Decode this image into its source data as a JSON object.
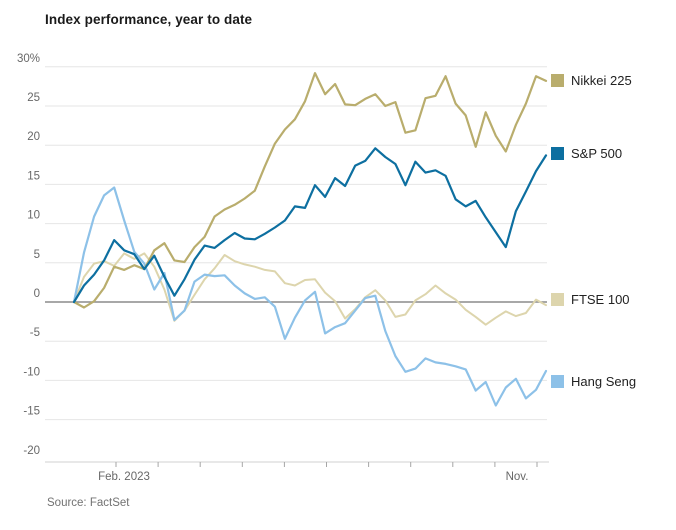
{
  "page": {
    "title": "Index performance, year to date",
    "source": "Source: FactSet"
  },
  "chart_data": {
    "type": "line",
    "title": "Index performance, year to date",
    "ylabel": "",
    "xlabel": "",
    "y_unit": "%",
    "ylim": [
      -20,
      30
    ],
    "y_ticks": [
      30,
      25,
      20,
      15,
      10,
      5,
      0,
      -5,
      -10,
      -15,
      -20
    ],
    "y_top_tick_label": "30%",
    "grid": "horizontal-light, dark zero line",
    "legend_position": "right, aligned to line ends",
    "x_axis": {
      "start_label": "Feb. 2023",
      "end_label": "Nov.",
      "tick_count": 11,
      "tick_meaning": "month starts Feb 2023 through Dec 2023",
      "labels": [
        {
          "text": "Feb. 2023"
        },
        {
          "text": "Nov."
        }
      ]
    },
    "x_note": "48 points, ~weekly from early Jan 2023 to early Dec 2023",
    "series": [
      {
        "name": "Nikkei 225",
        "color": "#b9ad6d",
        "values": [
          0,
          -0.7,
          0.1,
          1.8,
          4.5,
          4.1,
          4.7,
          4.2,
          6.6,
          7.5,
          5.3,
          5.1,
          7.0,
          8.3,
          10.9,
          11.8,
          12.4,
          13.2,
          14.2,
          17.3,
          20.2,
          22.0,
          23.3,
          25.6,
          29.2,
          26.5,
          27.8,
          25.2,
          25.1,
          25.9,
          26.5,
          25.0,
          25.5,
          21.6,
          21.9,
          26.0,
          26.3,
          28.8,
          25.3,
          23.8,
          19.8,
          24.2,
          21.2,
          19.2,
          22.6,
          25.3,
          28.8,
          28.2
        ]
      },
      {
        "name": "S&P 500",
        "color": "#0d6fa0",
        "values": [
          0,
          2.1,
          3.5,
          5.3,
          7.9,
          6.6,
          6.1,
          4.2,
          5.9,
          3.2,
          0.8,
          2.9,
          5.4,
          7.2,
          6.9,
          7.9,
          8.8,
          8.1,
          8.0,
          8.7,
          9.5,
          10.4,
          12.2,
          12.0,
          14.9,
          13.4,
          15.8,
          14.8,
          17.4,
          18.0,
          19.6,
          18.5,
          17.6,
          14.9,
          17.9,
          16.5,
          16.8,
          16.1,
          13.1,
          12.2,
          12.9,
          10.8,
          8.9,
          7.0,
          11.6,
          14.1,
          16.7,
          18.7
        ]
      },
      {
        "name": "FTSE 100",
        "color": "#ddd5ad",
        "values": [
          0,
          3.2,
          4.9,
          5.2,
          4.6,
          6.2,
          5.5,
          6.2,
          4.5,
          1.6,
          -2.4,
          -1.1,
          0.9,
          2.9,
          4.3,
          6.0,
          5.2,
          4.8,
          4.5,
          4.1,
          3.9,
          2.4,
          2.1,
          2.8,
          2.9,
          1.2,
          0.1,
          -2.1,
          -0.9,
          0.6,
          1.5,
          0.2,
          -1.9,
          -1.6,
          0.2,
          1.0,
          2.1,
          1.1,
          0.3,
          -1.0,
          -1.9,
          -2.9,
          -2.0,
          -1.2,
          -1.8,
          -1.4,
          0.3,
          -0.4
        ]
      },
      {
        "name": "Hang Seng",
        "color": "#8dc1e8",
        "values": [
          0,
          6.3,
          10.9,
          13.6,
          14.6,
          10.4,
          6.4,
          4.9,
          1.6,
          3.7,
          -2.3,
          -1.1,
          2.6,
          3.5,
          3.3,
          3.4,
          2.1,
          1.1,
          0.4,
          0.6,
          -0.6,
          -4.7,
          -2.0,
          0.2,
          1.3,
          -4.0,
          -3.2,
          -2.7,
          -1.1,
          0.5,
          0.8,
          -3.7,
          -6.9,
          -8.9,
          -8.5,
          -7.2,
          -7.7,
          -7.9,
          -8.2,
          -8.6,
          -11.3,
          -10.2,
          -13.2,
          -10.9,
          -9.8,
          -12.3,
          -11.2,
          -8.8
        ]
      }
    ],
    "source": "Source: FactSet"
  },
  "legend": {
    "items": [
      {
        "label": "Nikkei 225",
        "color": "#b9ad6d"
      },
      {
        "label": "S&P 500",
        "color": "#0d6fa0"
      },
      {
        "label": "FTSE 100",
        "color": "#ddd5ad"
      },
      {
        "label": "Hang Seng",
        "color": "#8dc1e8"
      }
    ]
  },
  "colors": {
    "gridline": "#e6e6e6",
    "zero_line": "#8c8c8c",
    "axis_line": "#d2d2d2",
    "tick": "#a6a6a6",
    "axis_text": "#686868"
  }
}
